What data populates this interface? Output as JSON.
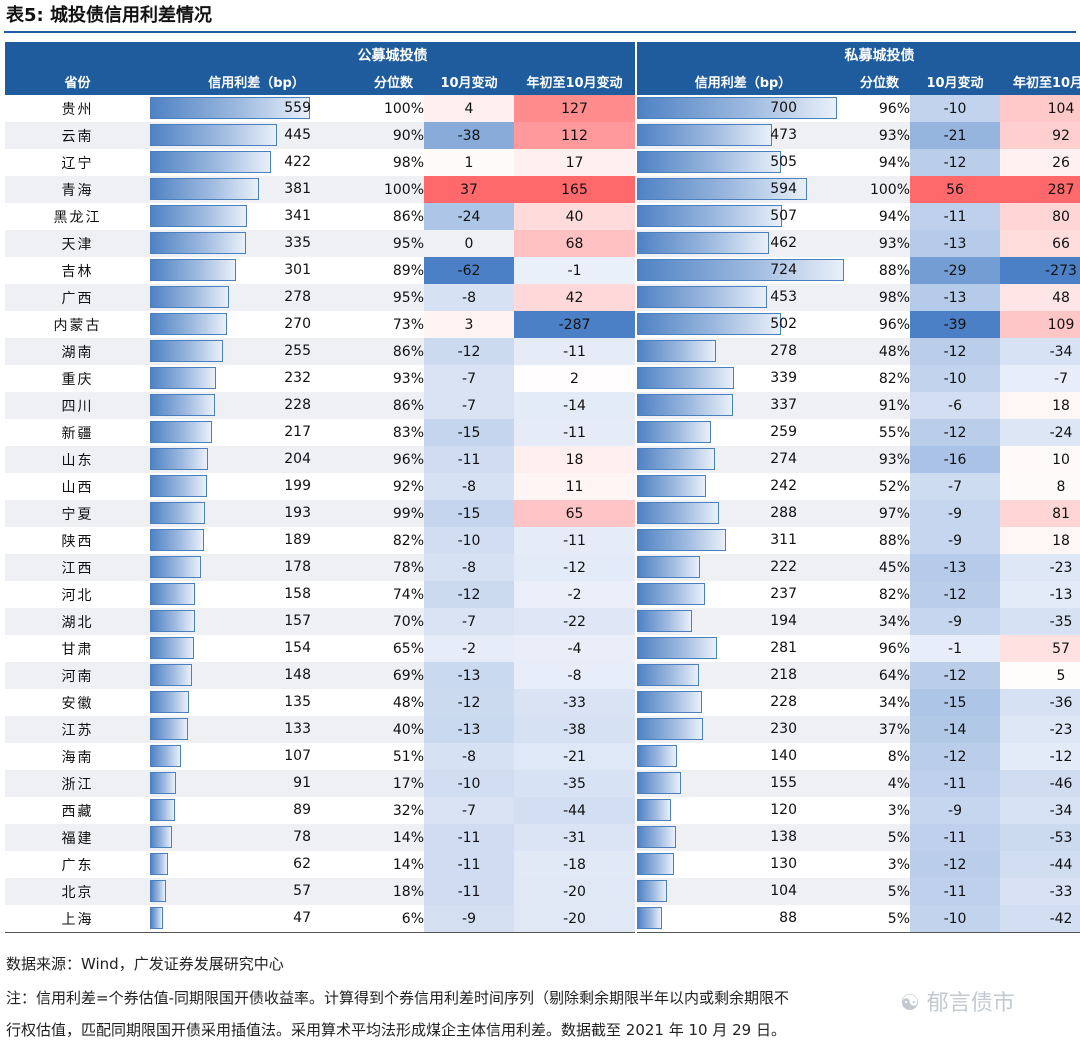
{
  "title": "表5: 城投债信用利差情况",
  "groups": {
    "public": "公募城投债",
    "private": "私募城投债"
  },
  "columns": {
    "province": "省份",
    "spread": "信用利差（bp）",
    "percentile": "分位数",
    "oct_change": "10月变动",
    "ytd_change": "年初至10月变动"
  },
  "colors": {
    "header": "#1f5c9e",
    "bar": "#4f82c4",
    "negative": "#4a7fc0",
    "positive": "#f8696b"
  },
  "rows": [
    {
      "province": "贵州",
      "pub": {
        "spread": 559,
        "pct": "100%",
        "oct": 4,
        "ytd": 127
      },
      "pri": {
        "spread": 700,
        "pct": "96%",
        "oct": -10,
        "ytd": 104
      }
    },
    {
      "province": "云南",
      "pub": {
        "spread": 445,
        "pct": "90%",
        "oct": -38,
        "ytd": 112
      },
      "pri": {
        "spread": 473,
        "pct": "93%",
        "oct": -21,
        "ytd": 92
      }
    },
    {
      "province": "辽宁",
      "pub": {
        "spread": 422,
        "pct": "98%",
        "oct": 1,
        "ytd": 17
      },
      "pri": {
        "spread": 505,
        "pct": "94%",
        "oct": -12,
        "ytd": 26
      }
    },
    {
      "province": "青海",
      "pub": {
        "spread": 381,
        "pct": "100%",
        "oct": 37,
        "ytd": 165
      },
      "pri": {
        "spread": 594,
        "pct": "100%",
        "oct": 56,
        "ytd": 287
      }
    },
    {
      "province": "黑龙江",
      "pub": {
        "spread": 341,
        "pct": "86%",
        "oct": -24,
        "ytd": 40
      },
      "pri": {
        "spread": 507,
        "pct": "94%",
        "oct": -11,
        "ytd": 80
      }
    },
    {
      "province": "天津",
      "pub": {
        "spread": 335,
        "pct": "95%",
        "oct": 0,
        "ytd": 68
      },
      "pri": {
        "spread": 462,
        "pct": "93%",
        "oct": -13,
        "ytd": 66
      }
    },
    {
      "province": "吉林",
      "pub": {
        "spread": 301,
        "pct": "89%",
        "oct": -62,
        "ytd": -1
      },
      "pri": {
        "spread": 724,
        "pct": "88%",
        "oct": -29,
        "ytd": -273
      }
    },
    {
      "province": "广西",
      "pub": {
        "spread": 278,
        "pct": "95%",
        "oct": -8,
        "ytd": 42
      },
      "pri": {
        "spread": 453,
        "pct": "98%",
        "oct": -13,
        "ytd": 48
      }
    },
    {
      "province": "内蒙古",
      "pub": {
        "spread": 270,
        "pct": "73%",
        "oct": 3,
        "ytd": -287
      },
      "pri": {
        "spread": 502,
        "pct": "96%",
        "oct": -39,
        "ytd": 109
      }
    },
    {
      "province": "湖南",
      "pub": {
        "spread": 255,
        "pct": "86%",
        "oct": -12,
        "ytd": -11
      },
      "pri": {
        "spread": 278,
        "pct": "48%",
        "oct": -12,
        "ytd": -34
      }
    },
    {
      "province": "重庆",
      "pub": {
        "spread": 232,
        "pct": "93%",
        "oct": -7,
        "ytd": 2
      },
      "pri": {
        "spread": 339,
        "pct": "82%",
        "oct": -10,
        "ytd": -7
      }
    },
    {
      "province": "四川",
      "pub": {
        "spread": 228,
        "pct": "86%",
        "oct": -7,
        "ytd": -14
      },
      "pri": {
        "spread": 337,
        "pct": "91%",
        "oct": -6,
        "ytd": 18
      }
    },
    {
      "province": "新疆",
      "pub": {
        "spread": 217,
        "pct": "83%",
        "oct": -15,
        "ytd": -11
      },
      "pri": {
        "spread": 259,
        "pct": "55%",
        "oct": -12,
        "ytd": -24
      }
    },
    {
      "province": "山东",
      "pub": {
        "spread": 204,
        "pct": "96%",
        "oct": -11,
        "ytd": 18
      },
      "pri": {
        "spread": 274,
        "pct": "93%",
        "oct": -16,
        "ytd": 10
      }
    },
    {
      "province": "山西",
      "pub": {
        "spread": 199,
        "pct": "92%",
        "oct": -8,
        "ytd": 11
      },
      "pri": {
        "spread": 242,
        "pct": "52%",
        "oct": -7,
        "ytd": 8
      }
    },
    {
      "province": "宁夏",
      "pub": {
        "spread": 193,
        "pct": "99%",
        "oct": -15,
        "ytd": 65
      },
      "pri": {
        "spread": 288,
        "pct": "97%",
        "oct": -9,
        "ytd": 81
      }
    },
    {
      "province": "陕西",
      "pub": {
        "spread": 189,
        "pct": "82%",
        "oct": -10,
        "ytd": -11
      },
      "pri": {
        "spread": 311,
        "pct": "88%",
        "oct": -9,
        "ytd": 18
      }
    },
    {
      "province": "江西",
      "pub": {
        "spread": 178,
        "pct": "78%",
        "oct": -8,
        "ytd": -12
      },
      "pri": {
        "spread": 222,
        "pct": "45%",
        "oct": -13,
        "ytd": -23
      }
    },
    {
      "province": "河北",
      "pub": {
        "spread": 158,
        "pct": "74%",
        "oct": -12,
        "ytd": -2
      },
      "pri": {
        "spread": 237,
        "pct": "82%",
        "oct": -12,
        "ytd": -13
      }
    },
    {
      "province": "湖北",
      "pub": {
        "spread": 157,
        "pct": "70%",
        "oct": -7,
        "ytd": -22
      },
      "pri": {
        "spread": 194,
        "pct": "34%",
        "oct": -9,
        "ytd": -35
      }
    },
    {
      "province": "甘肃",
      "pub": {
        "spread": 154,
        "pct": "65%",
        "oct": -2,
        "ytd": -4
      },
      "pri": {
        "spread": 281,
        "pct": "96%",
        "oct": -1,
        "ytd": 57
      }
    },
    {
      "province": "河南",
      "pub": {
        "spread": 148,
        "pct": "69%",
        "oct": -13,
        "ytd": -8
      },
      "pri": {
        "spread": 218,
        "pct": "64%",
        "oct": -12,
        "ytd": 5
      }
    },
    {
      "province": "安徽",
      "pub": {
        "spread": 135,
        "pct": "48%",
        "oct": -12,
        "ytd": -33
      },
      "pri": {
        "spread": 228,
        "pct": "34%",
        "oct": -15,
        "ytd": -36
      }
    },
    {
      "province": "江苏",
      "pub": {
        "spread": 133,
        "pct": "40%",
        "oct": -13,
        "ytd": -38
      },
      "pri": {
        "spread": 230,
        "pct": "37%",
        "oct": -14,
        "ytd": -23
      }
    },
    {
      "province": "海南",
      "pub": {
        "spread": 107,
        "pct": "51%",
        "oct": -8,
        "ytd": -21
      },
      "pri": {
        "spread": 140,
        "pct": "8%",
        "oct": -12,
        "ytd": -12
      }
    },
    {
      "province": "浙江",
      "pub": {
        "spread": 91,
        "pct": "17%",
        "oct": -10,
        "ytd": -35
      },
      "pri": {
        "spread": 155,
        "pct": "4%",
        "oct": -11,
        "ytd": -46
      }
    },
    {
      "province": "西藏",
      "pub": {
        "spread": 89,
        "pct": "32%",
        "oct": -7,
        "ytd": -44
      },
      "pri": {
        "spread": 120,
        "pct": "3%",
        "oct": -9,
        "ytd": -34
      }
    },
    {
      "province": "福建",
      "pub": {
        "spread": 78,
        "pct": "14%",
        "oct": -11,
        "ytd": -31
      },
      "pri": {
        "spread": 138,
        "pct": "5%",
        "oct": -11,
        "ytd": -53
      }
    },
    {
      "province": "广东",
      "pub": {
        "spread": 62,
        "pct": "14%",
        "oct": -11,
        "ytd": -18
      },
      "pri": {
        "spread": 130,
        "pct": "3%",
        "oct": -12,
        "ytd": -44
      }
    },
    {
      "province": "北京",
      "pub": {
        "spread": 57,
        "pct": "18%",
        "oct": -11,
        "ytd": -20
      },
      "pri": {
        "spread": 104,
        "pct": "5%",
        "oct": -11,
        "ytd": -33
      }
    },
    {
      "province": "上海",
      "pub": {
        "spread": 47,
        "pct": "6%",
        "oct": -9,
        "ytd": -20
      },
      "pri": {
        "spread": 88,
        "pct": "5%",
        "oct": -10,
        "ytd": -42
      }
    }
  ],
  "source": "数据来源：Wind，广发证券发展研究中心",
  "note_line1": "注：信用利差=个券估值-同期限国开债收益率。计算得到个券信用利差时间序列（剔除剩余期限半年以内或剩余期限不",
  "note_line2": "行权估值，匹配同期限国开债采用插值法。采用算术平均法形成煤企主体信用利差。数据截至 2021 年 10 月 29 日。",
  "watermark": "郁言债市"
}
